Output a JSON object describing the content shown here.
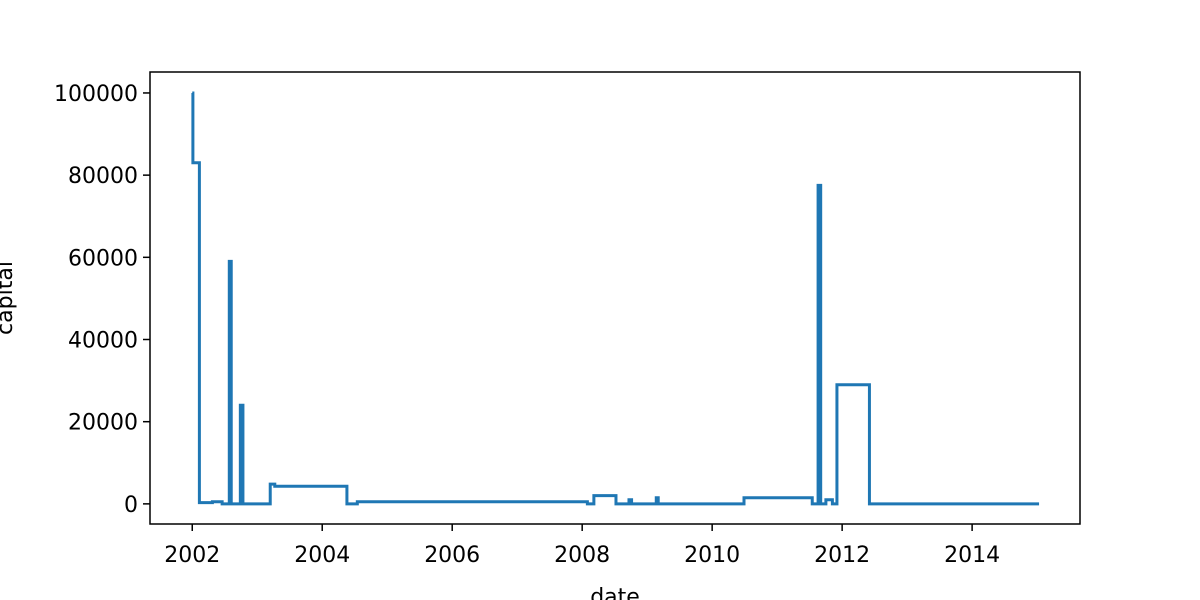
{
  "chart_data": {
    "type": "line",
    "drawstyle": "steps-post",
    "x_label": "date",
    "y_label": "capital",
    "series": [
      {
        "name": "capital",
        "color": "#1f77b4",
        "x": [
          2002.0,
          2002.01,
          2002.11,
          2002.31,
          2002.46,
          2002.57,
          2002.6,
          2002.74,
          2002.78,
          2003.11,
          2003.2,
          2003.27,
          2004.38,
          2004.54,
          2008.08,
          2008.18,
          2008.52,
          2008.72,
          2008.76,
          2009.14,
          2009.17,
          2010.49,
          2011.54,
          2011.63,
          2011.67,
          2011.75,
          2011.85,
          2011.92,
          2012.42,
          2015.03
        ],
        "values": [
          100000,
          83000,
          300,
          500,
          0,
          59000,
          0,
          24000,
          0,
          0,
          4800,
          4300,
          0,
          500,
          0,
          2000,
          0,
          1000,
          0,
          1500,
          0,
          1500,
          0,
          77500,
          0,
          1000,
          0,
          29000,
          0,
          0
        ]
      }
    ],
    "xlim": [
      2001.35,
      2015.66
    ],
    "xticks": [
      2002,
      2004,
      2006,
      2008,
      2010,
      2012,
      2014
    ],
    "ylim": [
      -4900,
      105100
    ],
    "yticks": [
      0,
      20000,
      40000,
      60000,
      80000,
      100000
    ],
    "grid": false
  }
}
